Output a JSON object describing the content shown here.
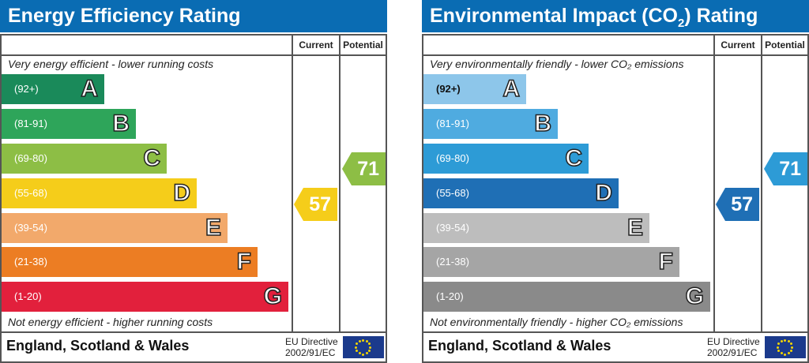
{
  "chart_data": [
    {
      "type": "table",
      "title": "Energy Efficiency Rating",
      "columns": [
        "Current",
        "Potential"
      ],
      "top_note": "Very energy efficient - lower running costs",
      "bottom_note": "Not energy efficient - higher running costs",
      "bands": [
        {
          "range": "(92+)",
          "letter": "A",
          "color": "#1a8a5a"
        },
        {
          "range": "(81-91)",
          "letter": "B",
          "color": "#2ea55a"
        },
        {
          "range": "(69-80)",
          "letter": "C",
          "color": "#8dbe45"
        },
        {
          "range": "(55-68)",
          "letter": "D",
          "color": "#f5cd1a"
        },
        {
          "range": "(39-54)",
          "letter": "E",
          "color": "#f2a96b"
        },
        {
          "range": "(21-38)",
          "letter": "F",
          "color": "#ec7d23"
        },
        {
          "range": "(1-20)",
          "letter": "G",
          "color": "#e2203c"
        }
      ],
      "current": {
        "value": "57",
        "band": "D",
        "color": "#f5cd1a"
      },
      "potential": {
        "value": "71",
        "band": "C",
        "color": "#8dbe45"
      },
      "footer": "England, Scotland & Wales",
      "directive": [
        "EU Directive",
        "2002/91/EC"
      ]
    },
    {
      "type": "table",
      "title": "Environmental Impact (CO",
      "title_sub": "2",
      "title_end": ") Rating",
      "columns": [
        "Current",
        "Potential"
      ],
      "top_note": "Very environmentally friendly - lower CO₂ emissions",
      "bottom_note": "Not environmentally friendly - higher CO₂ emissions",
      "bands": [
        {
          "range": "(92+)",
          "letter": "A",
          "color": "#8dc6ea"
        },
        {
          "range": "(81-91)",
          "letter": "B",
          "color": "#4fabe0"
        },
        {
          "range": "(69-80)",
          "letter": "C",
          "color": "#2d9bd6"
        },
        {
          "range": "(55-68)",
          "letter": "D",
          "color": "#1f6fb5"
        },
        {
          "range": "(39-54)",
          "letter": "E",
          "color": "#bdbdbd"
        },
        {
          "range": "(21-38)",
          "letter": "F",
          "color": "#a5a5a5"
        },
        {
          "range": "(1-20)",
          "letter": "G",
          "color": "#8a8a8a"
        }
      ],
      "current": {
        "value": "57",
        "band": "D",
        "color": "#1f6fb5"
      },
      "potential": {
        "value": "71",
        "band": "C",
        "color": "#2d9bd6"
      },
      "footer": "England, Scotland & Wales",
      "directive": [
        "EU Directive",
        "2002/91/EC"
      ]
    }
  ]
}
